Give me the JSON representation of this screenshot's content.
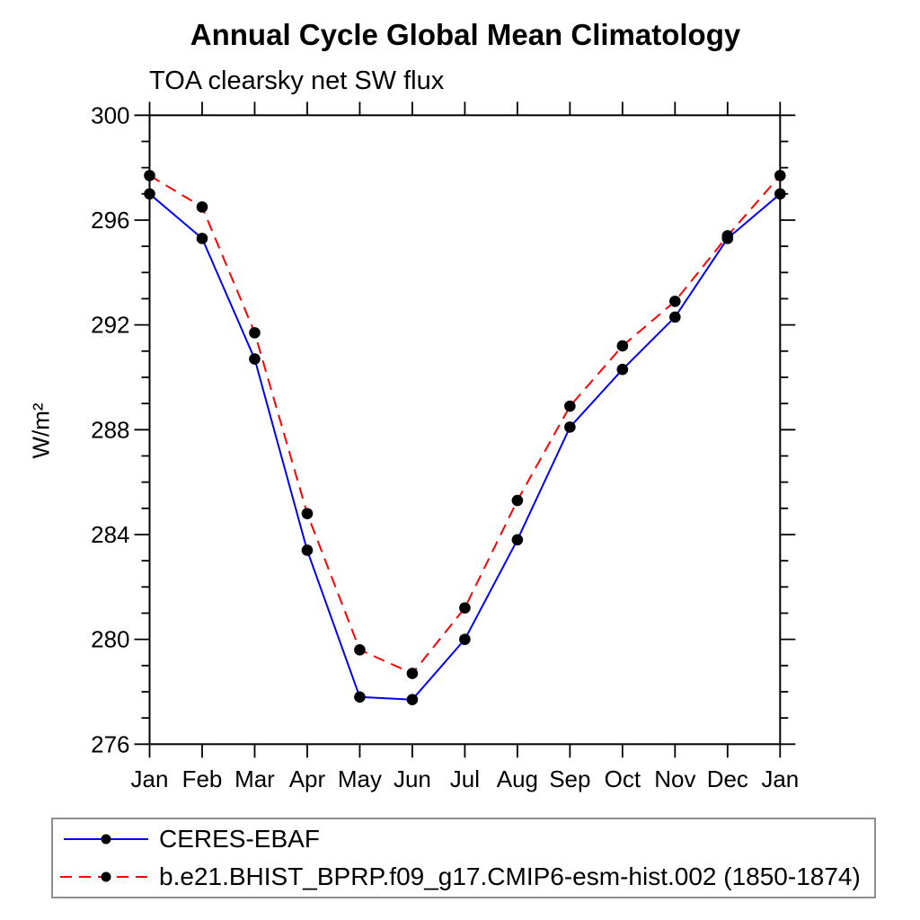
{
  "chart_data": {
    "type": "line",
    "title": "Annual Cycle Global Mean Climatology",
    "subtitle": "TOA clearsky net SW flux",
    "ylabel": "W/m²",
    "x_categories": [
      "Jan",
      "Feb",
      "Mar",
      "Apr",
      "May",
      "Jun",
      "Jul",
      "Aug",
      "Sep",
      "Oct",
      "Nov",
      "Dec",
      "Jan"
    ],
    "ylim": [
      276,
      300
    ],
    "yticks_major": [
      300,
      296,
      292,
      288,
      284,
      280,
      276
    ],
    "minor_tick_step": 1,
    "grid": false,
    "legend_position": "bottom-box",
    "series": [
      {
        "name": "CERES-EBAF",
        "color": "#0000ff",
        "line_style": "solid",
        "marker": "filled-circle",
        "marker_color": "#000000",
        "values": [
          297.0,
          295.3,
          290.7,
          283.4,
          277.8,
          277.7,
          280.0,
          283.8,
          288.1,
          290.3,
          292.3,
          295.3,
          297.0
        ]
      },
      {
        "name": "b.e21.BHIST_BPRP.f09_g17.CMIP6-esm-hist.002 (1850-1874)",
        "color": "#ff0000",
        "line_style": "dashed",
        "marker": "filled-circle",
        "marker_color": "#000000",
        "values": [
          297.7,
          296.5,
          291.7,
          284.8,
          279.6,
          278.7,
          281.2,
          285.3,
          288.9,
          291.2,
          292.9,
          295.4,
          297.7
        ]
      }
    ],
    "axis_color": "#000000",
    "background_color": "#ffffff"
  }
}
